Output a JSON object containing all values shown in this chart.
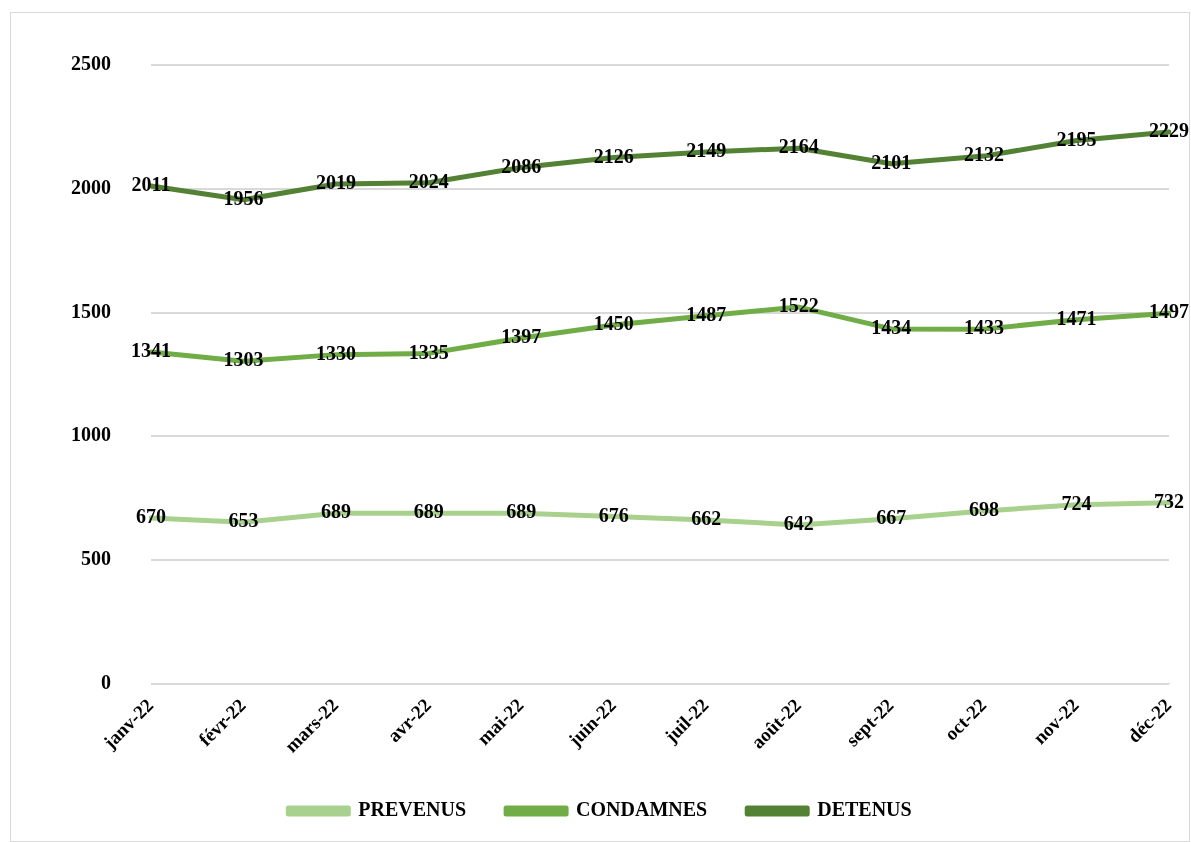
{
  "chart_data": {
    "type": "line",
    "categories": [
      "janv-22",
      "févr-22",
      "mars-22",
      "avr-22",
      "mai-22",
      "juin-22",
      "juil-22",
      "août-22",
      "sept-22",
      "oct-22",
      "nov-22",
      "déc-22"
    ],
    "series": [
      {
        "name": "PREVENUS",
        "color": "#a9d18e",
        "values": [
          670,
          653,
          689,
          689,
          689,
          676,
          662,
          642,
          667,
          698,
          724,
          732
        ]
      },
      {
        "name": "CONDAMNES",
        "color": "#70ad47",
        "values": [
          1341,
          1303,
          1330,
          1335,
          1397,
          1450,
          1487,
          1522,
          1434,
          1433,
          1471,
          1497
        ]
      },
      {
        "name": "DETENUS",
        "color": "#548235",
        "values": [
          2011,
          1956,
          2019,
          2024,
          2086,
          2126,
          2149,
          2164,
          2101,
          2132,
          2195,
          2229
        ]
      }
    ],
    "ylim": [
      0,
      2500
    ],
    "yticks": [
      0,
      500,
      1000,
      1500,
      2000,
      2500
    ],
    "grid": "y",
    "legend": "bottom",
    "data_labels": true,
    "marker": "none",
    "line_style": "solid"
  }
}
